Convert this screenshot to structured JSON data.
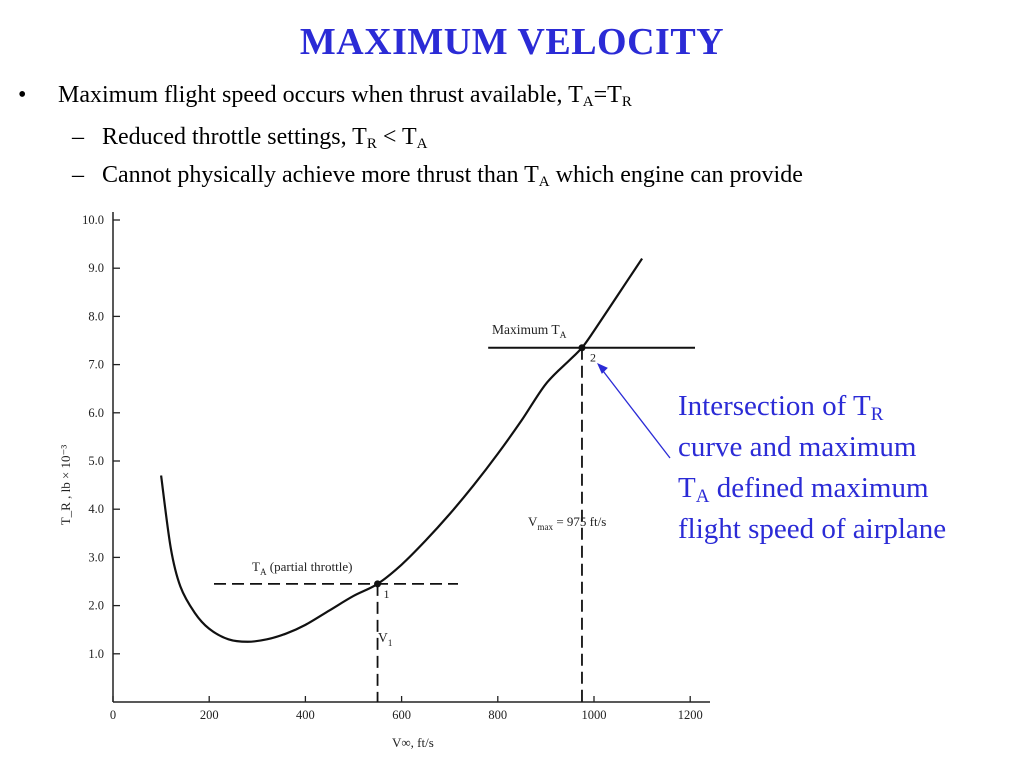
{
  "slide": {
    "title": "MAXIMUM VELOCITY",
    "bullet_main": {
      "marker": "•",
      "text": "Maximum flight speed occurs when thrust available, T",
      "sub1": "A",
      "mid": "=T",
      "sub2": "R"
    },
    "sub_bullet_1": {
      "marker": "–",
      "text": "Reduced throttle settings, T",
      "sub1": "R",
      "mid": " < T",
      "sub2": "A"
    },
    "sub_bullet_2": {
      "marker": "–",
      "text": "Cannot physically achieve more thrust than T",
      "sub1": "A",
      "tail": " which engine can provide"
    },
    "callout": {
      "l1": "Intersection of T",
      "l1_sub": "R",
      "l2": "curve and maximum",
      "l3": "T",
      "l3_sub": "A",
      "l3_tail": " defined maximum",
      "l4": "flight speed of airplane",
      "color": "#2b2bd6"
    }
  },
  "chart_data": {
    "type": "line",
    "xlabel": "V∞, ft/s",
    "ylabel": "T_R , lb × 10⁻³",
    "xlim": [
      0,
      1200
    ],
    "ylim": [
      0,
      10
    ],
    "x_ticks": [
      "0",
      "200",
      "400",
      "600",
      "800",
      "1000",
      "1200"
    ],
    "y_ticks": [
      "1.0",
      "2.0",
      "3.0",
      "4.0",
      "5.0",
      "6.0",
      "7.0",
      "8.0",
      "9.0",
      "10.0"
    ],
    "series": [
      {
        "x": [
          100,
          120,
          140,
          170,
          200,
          240,
          280,
          320,
          360,
          400,
          450,
          500,
          550,
          600,
          650,
          700,
          750,
          800,
          850,
          900,
          950,
          975,
          1000,
          1050,
          1100
        ],
        "y": [
          4.7,
          3.2,
          2.4,
          1.85,
          1.52,
          1.3,
          1.25,
          1.3,
          1.42,
          1.6,
          1.9,
          2.2,
          2.45,
          2.85,
          3.35,
          3.9,
          4.5,
          5.15,
          5.85,
          6.6,
          7.1,
          7.35,
          7.7,
          8.45,
          9.2
        ]
      }
    ],
    "lines": [
      {
        "label": "Maximum T_A",
        "y": 7.35,
        "x_range": [
          780,
          1220
        ]
      },
      {
        "label": "T_A (partial throttle)",
        "y": 2.45,
        "x_range": [
          210,
          720
        ]
      }
    ],
    "points": [
      {
        "label": "2",
        "x": 975,
        "y": 7.35
      },
      {
        "label": "1",
        "x": 550,
        "y": 2.45
      }
    ],
    "annotations": {
      "max_ta": "Maximum T",
      "max_ta_sub": "A",
      "partial": "T",
      "partial_sub": "A",
      "partial_tail": " (partial throttle)",
      "vmax": "V",
      "vmax_sub": "max",
      "vmax_tail": " = 975 ft/s",
      "v1": "V",
      "v1_sub": "1"
    }
  }
}
